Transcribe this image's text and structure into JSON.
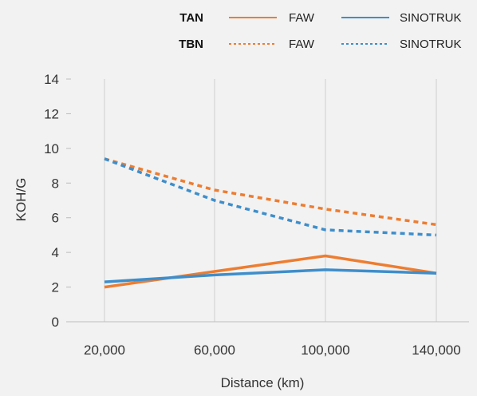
{
  "chart_data": {
    "type": "line",
    "xlabel": "Distance (km)",
    "ylabel": "KOH/G",
    "x": [
      20000,
      60000,
      100000,
      140000
    ],
    "x_tick_labels": [
      "20,000",
      "60,000",
      "100,000",
      "140,000"
    ],
    "ylim": [
      0,
      14
    ],
    "y_ticks": [
      0,
      2,
      4,
      6,
      8,
      10,
      12,
      14
    ],
    "grid": "vertical",
    "legend_position": "top",
    "legend_groups": [
      {
        "label": "TAN",
        "line_style": "solid"
      },
      {
        "label": "TBN",
        "line_style": "dotted"
      }
    ],
    "series": [
      {
        "name": "FAW",
        "group": "TAN",
        "style": "solid",
        "color": "#ed7d31",
        "values": [
          2.0,
          2.9,
          3.8,
          2.8
        ]
      },
      {
        "name": "SINOTRUK",
        "group": "TAN",
        "style": "solid",
        "color": "#3e8ecb",
        "values": [
          2.3,
          2.7,
          3.0,
          2.8
        ]
      },
      {
        "name": "FAW",
        "group": "TBN",
        "style": "dotted",
        "color": "#ed7d31",
        "values": [
          9.4,
          7.6,
          6.5,
          5.6
        ]
      },
      {
        "name": "SINOTRUK",
        "group": "TBN",
        "style": "dotted",
        "color": "#3e8ecb",
        "values": [
          9.4,
          7.0,
          5.3,
          5.0
        ]
      }
    ]
  }
}
